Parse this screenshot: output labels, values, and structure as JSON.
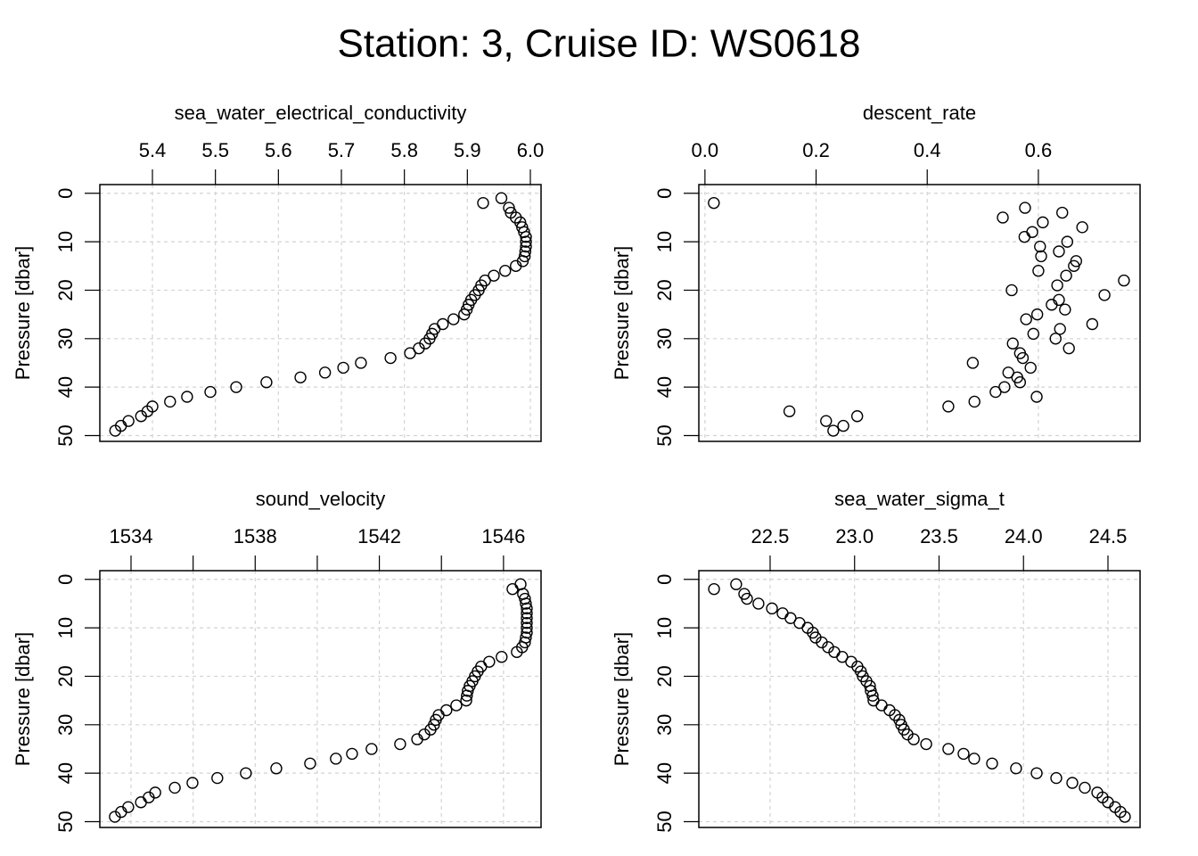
{
  "title": "Station: 3, Cruise ID: WS0618",
  "chart_data": [
    {
      "type": "scatter",
      "title": "sea_water_electrical_conductivity",
      "y_label": "Pressure [dbar]",
      "x": [
        5.954,
        5.925,
        5.966,
        5.969,
        5.977,
        5.984,
        5.987,
        5.99,
        5.993,
        5.993,
        5.993,
        5.992,
        5.991,
        5.988,
        5.977,
        5.96,
        5.942,
        5.928,
        5.922,
        5.918,
        5.912,
        5.906,
        5.902,
        5.899,
        5.895,
        5.878,
        5.861,
        5.848,
        5.844,
        5.84,
        5.833,
        5.823,
        5.809,
        5.778,
        5.731,
        5.703,
        5.674,
        5.635,
        5.581,
        5.533,
        5.492,
        5.455,
        5.428,
        5.4,
        5.392,
        5.382,
        5.362,
        5.35,
        5.341
      ],
      "y": [
        1,
        2,
        3,
        4,
        5,
        6,
        7,
        8,
        9,
        10,
        11,
        12,
        13,
        14,
        15,
        16,
        17,
        18,
        19,
        20,
        21,
        22,
        23,
        24,
        25,
        26,
        27,
        28,
        29,
        30,
        31,
        32,
        33,
        34,
        35,
        36,
        37,
        38,
        39,
        40,
        41,
        42,
        43,
        44,
        45,
        46,
        47,
        48,
        49
      ],
      "xlim": [
        5.3165,
        6.017
      ],
      "ylim": [
        51.2,
        -1.8
      ],
      "xticks": [
        5.4,
        5.5,
        5.6,
        5.7,
        5.8,
        5.9,
        {
          "value": 6,
          "label": "6.0"
        }
      ],
      "yticks": [
        0,
        10,
        20,
        30,
        40,
        50
      ],
      "grid": true
    },
    {
      "type": "scatter",
      "title": "descent_rate",
      "y_label": "Pressure [dbar]",
      "x": [
        null,
        0.016,
        0.576,
        0.643,
        0.536,
        0.608,
        0.679,
        0.589,
        0.575,
        0.652,
        0.603,
        0.637,
        0.605,
        0.668,
        0.664,
        0.6,
        0.65,
        0.754,
        0.634,
        0.552,
        0.719,
        0.637,
        0.624,
        0.648,
        0.598,
        0.578,
        0.697,
        0.639,
        0.591,
        0.631,
        0.554,
        0.655,
        0.567,
        0.572,
        0.482,
        0.586,
        0.546,
        0.562,
        0.567,
        0.539,
        0.523,
        0.597,
        0.485,
        0.438,
        0.152,
        0.274,
        0.218,
        0.249,
        0.231
      ],
      "y": [
        1,
        2,
        3,
        4,
        5,
        6,
        7,
        8,
        9,
        10,
        11,
        12,
        13,
        14,
        15,
        16,
        17,
        18,
        19,
        20,
        21,
        22,
        23,
        24,
        25,
        26,
        27,
        28,
        29,
        30,
        31,
        32,
        33,
        34,
        35,
        36,
        37,
        38,
        39,
        40,
        41,
        42,
        43,
        44,
        45,
        46,
        47,
        48,
        49
      ],
      "xlim": [
        -0.011,
        0.783
      ],
      "ylim": [
        51.2,
        -1.8
      ],
      "xticks": [
        {
          "value": 0,
          "label": "0.0"
        },
        0.2,
        0.4,
        0.6
      ],
      "yticks": [
        0,
        10,
        20,
        30,
        40,
        50
      ],
      "grid": true
    },
    {
      "type": "scatter",
      "title": "sound_velocity",
      "y_label": "Pressure [dbar]",
      "x": [
        1546.55,
        1546.29,
        1546.63,
        1546.69,
        1546.72,
        1546.75,
        1546.75,
        1546.75,
        1546.75,
        1546.75,
        1546.75,
        1546.72,
        1546.69,
        1546.6,
        1546.43,
        1545.94,
        1545.54,
        1545.28,
        1545.17,
        1545.08,
        1545.0,
        1544.91,
        1544.85,
        1544.82,
        1544.8,
        1544.48,
        1544.16,
        1543.91,
        1543.82,
        1543.76,
        1543.65,
        1543.45,
        1543.22,
        1542.67,
        1541.75,
        1541.12,
        1540.6,
        1539.77,
        1538.68,
        1537.7,
        1536.78,
        1535.98,
        1535.41,
        1534.78,
        1534.57,
        1534.32,
        1533.91,
        1533.68,
        1533.48
      ],
      "y": [
        1,
        2,
        3,
        4,
        5,
        6,
        7,
        8,
        9,
        10,
        11,
        12,
        13,
        14,
        15,
        16,
        17,
        18,
        19,
        20,
        21,
        22,
        23,
        24,
        25,
        26,
        27,
        28,
        29,
        30,
        31,
        32,
        33,
        34,
        35,
        36,
        37,
        38,
        39,
        40,
        41,
        42,
        43,
        44,
        45,
        46,
        47,
        48,
        49
      ],
      "xlim": [
        1532.995,
        1547.21
      ],
      "ylim": [
        51.2,
        -1.8
      ],
      "xticks": [
        1534,
        1538,
        1542,
        1546
      ],
      "xminorticks": [
        1536,
        1540,
        1544
      ],
      "yticks": [
        0,
        10,
        20,
        30,
        40,
        50
      ],
      "grid": true
    },
    {
      "type": "scatter",
      "title": "sea_water_sigma_t",
      "y_label": "Pressure [dbar]",
      "x": [
        22.299,
        22.168,
        22.347,
        22.363,
        22.431,
        22.511,
        22.574,
        22.621,
        22.674,
        22.722,
        22.753,
        22.769,
        22.806,
        22.843,
        22.88,
        22.927,
        22.98,
        23.017,
        23.037,
        23.049,
        23.07,
        23.091,
        23.096,
        23.107,
        23.112,
        23.16,
        23.207,
        23.239,
        23.265,
        23.276,
        23.292,
        23.313,
        23.35,
        23.424,
        23.555,
        23.645,
        23.708,
        23.814,
        23.956,
        24.078,
        24.194,
        24.289,
        24.363,
        24.437,
        24.468,
        24.5,
        24.542,
        24.574,
        24.6
      ],
      "y": [
        1,
        2,
        3,
        4,
        5,
        6,
        7,
        8,
        9,
        10,
        11,
        12,
        13,
        14,
        15,
        16,
        17,
        18,
        19,
        20,
        21,
        22,
        23,
        24,
        25,
        26,
        27,
        28,
        29,
        30,
        31,
        32,
        33,
        34,
        35,
        36,
        37,
        38,
        39,
        40,
        41,
        42,
        43,
        44,
        45,
        46,
        47,
        48,
        49
      ],
      "xlim": [
        22.078,
        24.69
      ],
      "ylim": [
        51.2,
        -1.8
      ],
      "xticks": [
        22.5,
        {
          "value": 23,
          "label": "23.0"
        },
        23.5,
        {
          "value": 24,
          "label": "24.0"
        },
        24.5
      ],
      "yticks": [
        0,
        10,
        20,
        30,
        40,
        50
      ],
      "grid": true
    }
  ]
}
